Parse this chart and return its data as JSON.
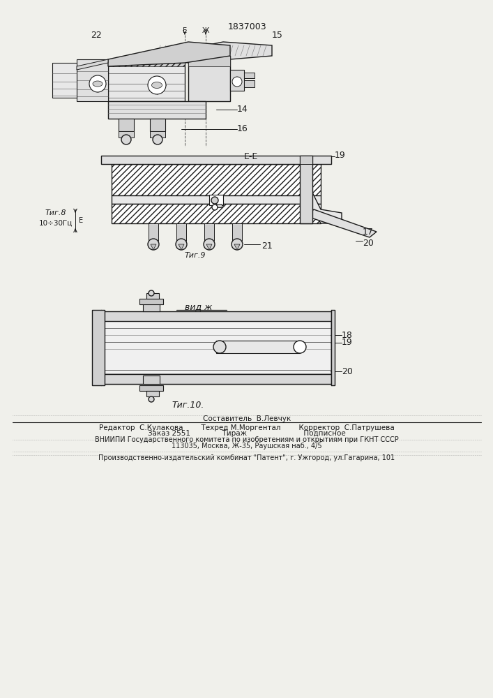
{
  "title": "1837003",
  "bg": "#f0f0eb",
  "fig8_label": "Τиг.8",
  "fig9_label": "Τиг.9",
  "fig10_label": "Τиг.10.",
  "view_zh": "вид ж",
  "freq": "10÷30Гц",
  "EE": "E-E",
  "footer_a": "Составитель  В.Левчук",
  "footer_b": "Редактор  С.Кулакова",
  "footer_c": "Техред М.Моргентал",
  "footer_d": "Корректор  С.Патрушева",
  "footer_e": "Заказ 2551",
  "footer_f": "Тираж",
  "footer_g": "Подписное",
  "footer_h": "ВНИИПИ Государственного комитета по изобретениям и открытиям при ГКНТ СССР",
  "footer_i": "113035, Москва, Ж-35, Раушская наб., 4/5",
  "footer_j": "Производственно-издательский комбинат \"Патент\", г. Ужгород, ул.Гагарина, 101"
}
